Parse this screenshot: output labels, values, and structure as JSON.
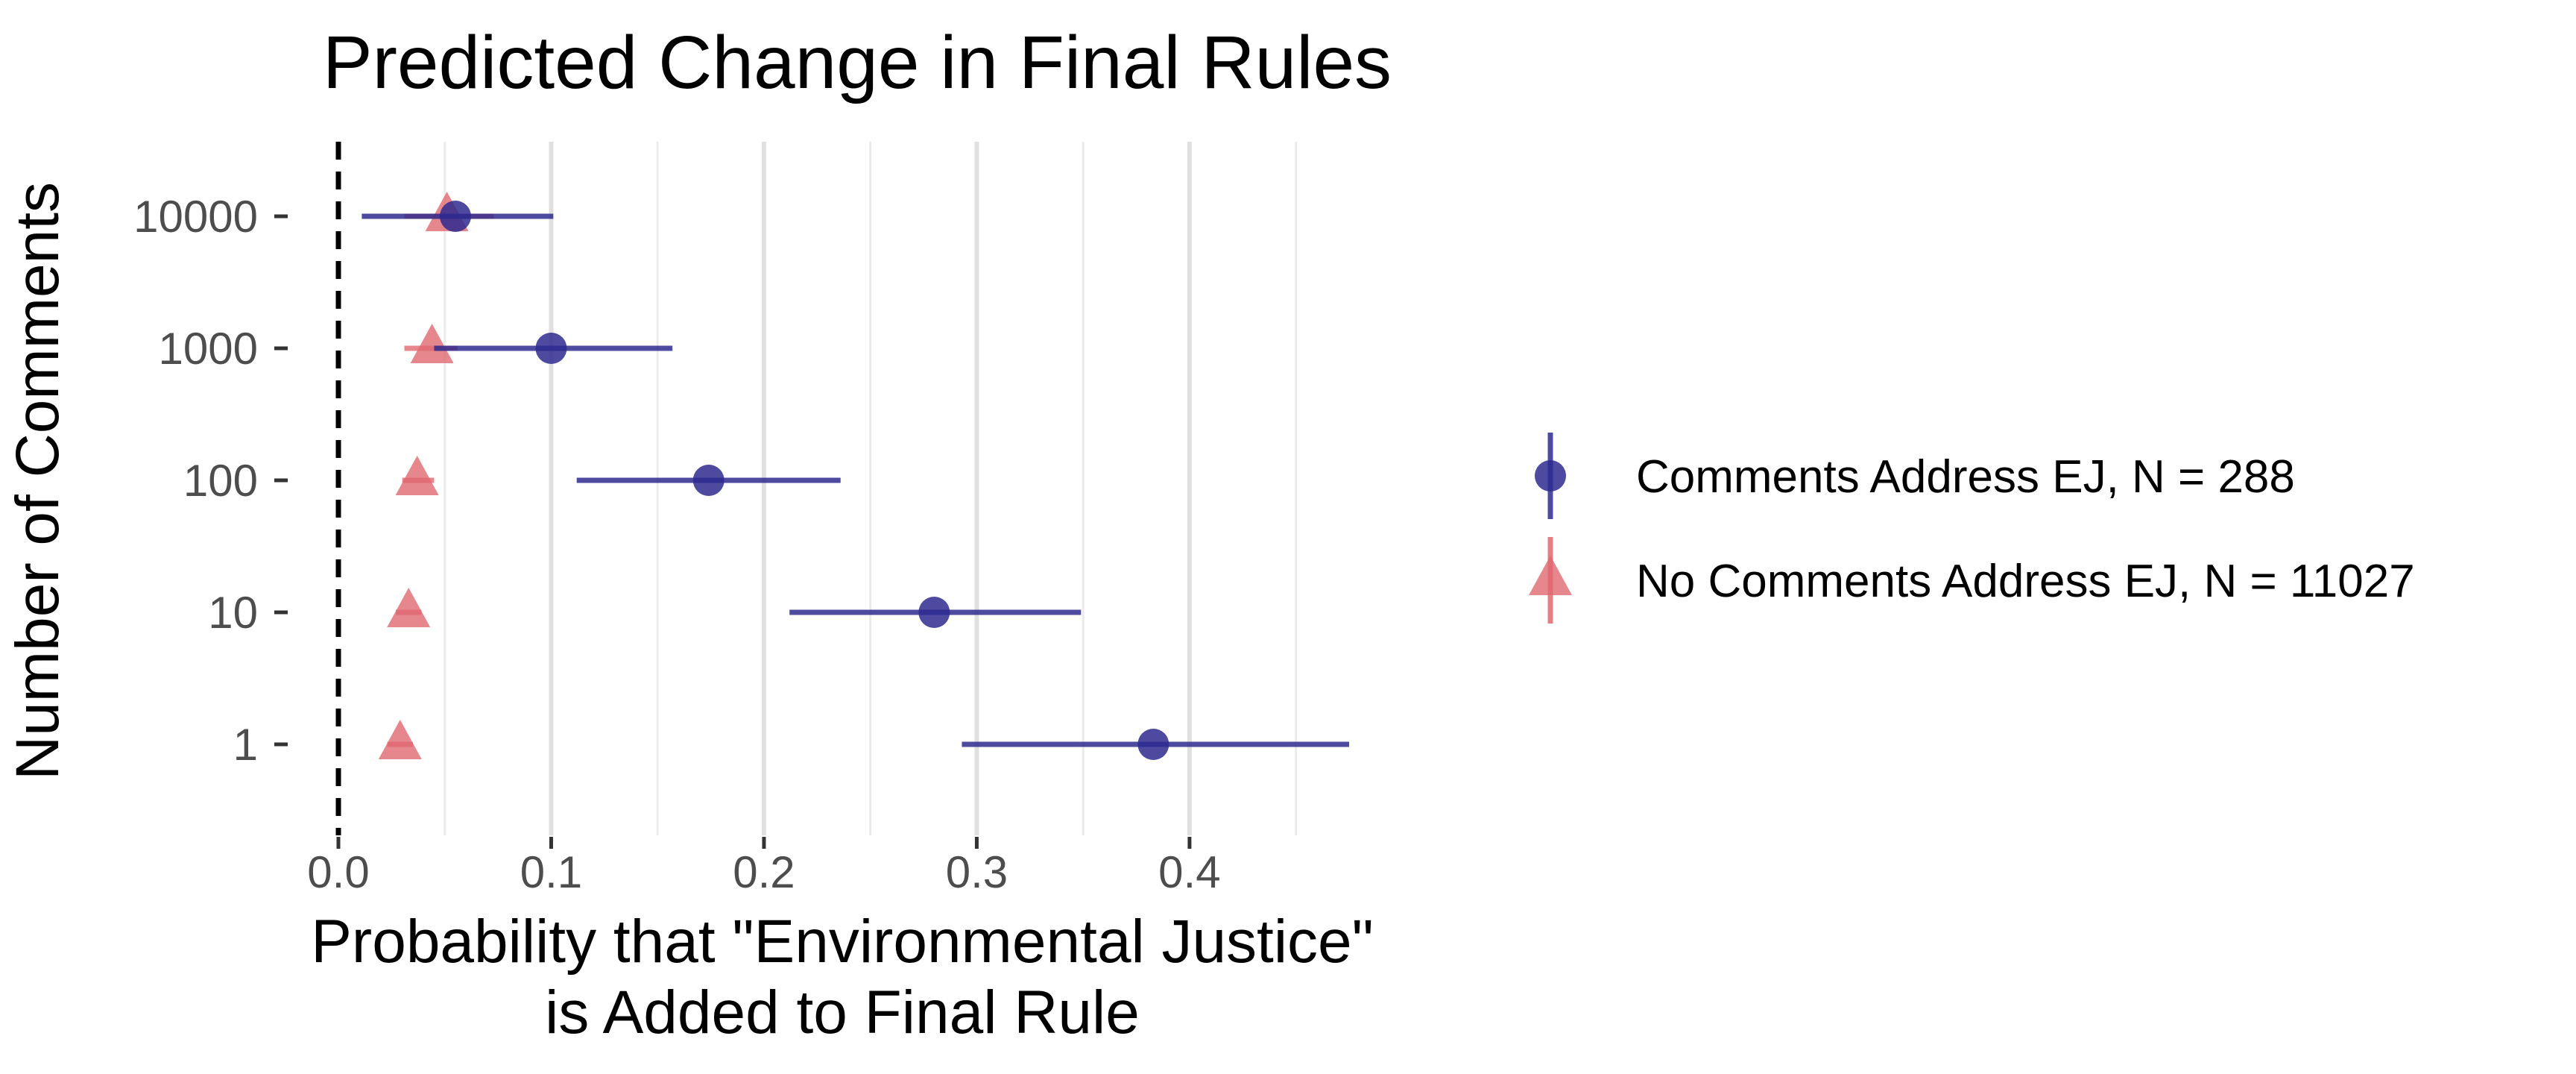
{
  "chart_data": {
    "type": "scatter",
    "title": "Predicted Change in Final Rules",
    "xlabel_lines": [
      "Probability that \"Environmental Justice\"",
      "is Added to Final Rule"
    ],
    "ylabel": "Number of Comments",
    "xlim": [
      0.0,
      0.475
    ],
    "x_ticks": [
      0.0,
      0.1,
      0.2,
      0.3,
      0.4
    ],
    "x_tick_labels": [
      "0.0",
      "0.1",
      "0.2",
      "0.3",
      "0.4"
    ],
    "x_minor_gridlines": [
      0.05,
      0.15,
      0.25,
      0.35,
      0.45
    ],
    "categories": [
      "10000",
      "1000",
      "100",
      "10",
      "1"
    ],
    "reference_line": {
      "x": 0.0,
      "style": "dashed"
    },
    "grid": "vertical",
    "legend_position": "right",
    "series": [
      {
        "name": "Comments Address EJ, N = 288",
        "marker": "circle",
        "color": "#2e2a8f",
        "points": [
          {
            "category": "10000",
            "estimate": 0.055,
            "low": 0.011,
            "high": 0.101
          },
          {
            "category": "1000",
            "estimate": 0.1,
            "low": 0.045,
            "high": 0.157
          },
          {
            "category": "100",
            "estimate": 0.174,
            "low": 0.112,
            "high": 0.236
          },
          {
            "category": "10",
            "estimate": 0.28,
            "low": 0.212,
            "high": 0.349
          },
          {
            "category": "1",
            "estimate": 0.383,
            "low": 0.293,
            "high": 0.475
          }
        ]
      },
      {
        "name": "No Comments Address EJ, N = 11027",
        "marker": "triangle",
        "color": "#e06870",
        "points": [
          {
            "category": "10000",
            "estimate": 0.051,
            "low": 0.031,
            "high": 0.073
          },
          {
            "category": "1000",
            "estimate": 0.044,
            "low": 0.031,
            "high": 0.056
          },
          {
            "category": "100",
            "estimate": 0.037,
            "low": 0.03,
            "high": 0.045
          },
          {
            "category": "10",
            "estimate": 0.033,
            "low": 0.027,
            "high": 0.039
          },
          {
            "category": "1",
            "estimate": 0.029,
            "low": 0.023,
            "high": 0.035
          }
        ]
      }
    ]
  }
}
